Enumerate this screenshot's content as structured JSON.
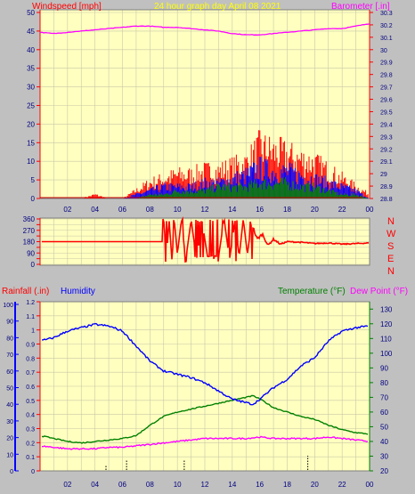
{
  "colors": {
    "background": "#c0c0c0",
    "plot_bg": "#ffffc0",
    "grid": "#c8c8a8",
    "red": "#ff0000",
    "magenta": "#ff00ff",
    "blue": "#0000ff",
    "green": "#008000",
    "yellow": "#ffff00",
    "axis": "#000000"
  },
  "top_panel": {
    "title": "24 hour graph day   April 08 2021",
    "left_label": "Windspeed [mph]",
    "right_label": "Barometer [.in]"
  },
  "direction_panel": {
    "compass": [
      "N",
      "W",
      "S",
      "E",
      "N"
    ]
  },
  "bottom_panel": {
    "rain_label": "Rainfall (.in)",
    "humidity_label": "Humidity",
    "temp_label": "Temperature (°F)",
    "dew_label": "Dew Point (°F)"
  },
  "x_ticks": [
    "02",
    "04",
    "06",
    "08",
    "10",
    "12",
    "14",
    "16",
    "18",
    "20",
    "22",
    "00"
  ],
  "chart_data": [
    {
      "type": "line",
      "panel": "wind-barometer",
      "title": "24 hour graph day   April 08 2021",
      "x_ticks": [
        "02",
        "04",
        "06",
        "08",
        "10",
        "12",
        "14",
        "16",
        "18",
        "20",
        "22",
        "00"
      ],
      "y_left": {
        "label": "Windspeed [mph]",
        "range": [
          0,
          50
        ],
        "ticks": [
          0,
          5,
          10,
          15,
          20,
          25,
          30,
          35,
          40,
          45,
          50
        ]
      },
      "y_right": {
        "label": "Barometer [.in]",
        "range": [
          28.8,
          30.3
        ],
        "ticks": [
          "28.8",
          "28.9",
          "29",
          "29.1",
          "29.2",
          "29.3",
          "29.4",
          "29.5",
          "29.6",
          "29.7",
          "29.8",
          "29.9",
          "30",
          "30.1",
          "30.2",
          "30.3"
        ]
      },
      "series": [
        {
          "name": "Barometer [.in]",
          "axis": "right",
          "color": "#ff00ff",
          "x": [
            0,
            1,
            2,
            3,
            4,
            5,
            6,
            7,
            8,
            9,
            10,
            11,
            12,
            13,
            14,
            15,
            16,
            17,
            18,
            19,
            20,
            21,
            22,
            23,
            24
          ],
          "values": [
            30.14,
            30.13,
            30.14,
            30.15,
            30.16,
            30.17,
            30.18,
            30.19,
            30.19,
            30.18,
            30.18,
            30.17,
            30.16,
            30.15,
            30.13,
            30.12,
            30.12,
            30.13,
            30.14,
            30.15,
            30.16,
            30.17,
            30.17,
            30.19,
            30.21
          ]
        },
        {
          "name": "Wind gust",
          "axis": "left",
          "color": "#ff0000",
          "x": [
            0,
            1,
            2,
            3,
            4,
            5,
            6,
            7,
            8,
            9,
            10,
            11,
            12,
            13,
            14,
            15,
            16,
            17,
            18,
            19,
            20,
            21,
            22,
            23,
            24
          ],
          "values": [
            0,
            0,
            0,
            0,
            1,
            0,
            0,
            2,
            4,
            5,
            6,
            6,
            7,
            7,
            8,
            9,
            13,
            12,
            11,
            10,
            9,
            7,
            5,
            3,
            1
          ]
        },
        {
          "name": "Wind average",
          "axis": "left",
          "color": "#0000ff",
          "x": [
            0,
            1,
            2,
            3,
            4,
            5,
            6,
            7,
            8,
            9,
            10,
            11,
            12,
            13,
            14,
            15,
            16,
            17,
            18,
            19,
            20,
            21,
            22,
            23,
            24
          ],
          "values": [
            0,
            0,
            0,
            0,
            0,
            0,
            0,
            1,
            2,
            3,
            3,
            3,
            4,
            4,
            5,
            6,
            8,
            7,
            7,
            6,
            5,
            4,
            3,
            2,
            0
          ]
        },
        {
          "name": "Wind lull",
          "axis": "left",
          "color": "#008000",
          "x": [
            0,
            1,
            2,
            3,
            4,
            5,
            6,
            7,
            8,
            9,
            10,
            11,
            12,
            13,
            14,
            15,
            16,
            17,
            18,
            19,
            20,
            21,
            22,
            23,
            24
          ],
          "values": [
            0,
            0,
            0,
            0,
            0,
            0,
            0,
            0,
            1,
            1,
            2,
            2,
            2,
            3,
            3,
            3,
            4,
            4,
            4,
            3,
            3,
            2,
            1,
            1,
            0
          ]
        }
      ]
    },
    {
      "type": "line",
      "panel": "wind-direction",
      "x_ticks": [
        "02",
        "04",
        "06",
        "08",
        "10",
        "12",
        "14",
        "16",
        "18",
        "20",
        "22",
        "00"
      ],
      "y_left": {
        "range": [
          0,
          360
        ],
        "ticks": [
          0,
          45,
          90,
          135,
          180,
          225,
          270,
          315,
          360
        ]
      },
      "y_right_labels": [
        "N",
        "W",
        "S",
        "E",
        "N"
      ],
      "series": [
        {
          "name": "Wind direction",
          "color": "#ff0000",
          "x": [
            0,
            6,
            8.9,
            9.0,
            9.2,
            9.4,
            9.6,
            9.8,
            10.0,
            10.3,
            10.6,
            11.0,
            11.4,
            11.8,
            12.2,
            12.6,
            13.0,
            13.4,
            13.8,
            14.2,
            14.5,
            14.8,
            15.1,
            15.4,
            15.8,
            16.2,
            16.6,
            17.0,
            17.5,
            18,
            19,
            20,
            21,
            22,
            23,
            24
          ],
          "values": [
            180,
            180,
            180,
            360,
            60,
            350,
            40,
            330,
            80,
            360,
            30,
            350,
            40,
            340,
            60,
            70,
            60,
            360,
            40,
            350,
            60,
            360,
            80,
            330,
            200,
            240,
            150,
            200,
            160,
            180,
            175,
            165,
            170,
            160,
            165,
            170
          ]
        }
      ]
    },
    {
      "type": "line",
      "panel": "temp-humidity-rain",
      "x_ticks": [
        "02",
        "04",
        "06",
        "08",
        "10",
        "12",
        "14",
        "16",
        "18",
        "20",
        "22",
        "00"
      ],
      "y_left_outer": {
        "label": "Rainfall (.in)",
        "range": [
          0,
          1.2
        ],
        "ticks": [
          "0",
          "0.1",
          "0.2",
          "0.3",
          "0.4",
          "0.5",
          "0.6",
          "0.7",
          "0.8",
          "0.9",
          "1",
          "1.1",
          "1.2"
        ]
      },
      "y_left_inner": {
        "label": "Humidity",
        "range": [
          0,
          100
        ],
        "ticks": [
          0,
          10,
          20,
          30,
          40,
          50,
          60,
          70,
          80,
          90,
          100
        ]
      },
      "y_right": {
        "label": "Temperature (°F)",
        "range": [
          20,
          135
        ],
        "ticks": [
          20,
          30,
          40,
          50,
          60,
          70,
          80,
          90,
          100,
          110,
          120,
          130
        ]
      },
      "series": [
        {
          "name": "Humidity",
          "axis": "humidity",
          "color": "#0000ff",
          "x": [
            0,
            1,
            2,
            3,
            4,
            5,
            6,
            7,
            8,
            9,
            10,
            11,
            12,
            13,
            14,
            15,
            15.5,
            16,
            17,
            18,
            19,
            20,
            21,
            22,
            23,
            24
          ],
          "values": [
            78,
            80,
            84,
            86,
            88,
            87,
            84,
            75,
            66,
            60,
            58,
            56,
            53,
            48,
            43,
            41,
            40,
            43,
            50,
            55,
            63,
            68,
            78,
            84,
            86,
            87
          ]
        },
        {
          "name": "Temperature (°F)",
          "axis": "temp",
          "color": "#008000",
          "x": [
            0,
            1,
            2,
            3,
            4,
            5,
            6,
            7,
            8,
            9,
            10,
            11,
            12,
            13,
            14,
            15,
            15.5,
            16,
            17,
            18,
            19,
            20,
            21,
            22,
            23,
            24
          ],
          "values": [
            44,
            42,
            40,
            39,
            40,
            41,
            42,
            44,
            51,
            57,
            60,
            62,
            64,
            66,
            68,
            70,
            71,
            69,
            63,
            60,
            57,
            55,
            51,
            48,
            46,
            45
          ]
        },
        {
          "name": "Dew Point (°F)",
          "axis": "temp",
          "color": "#ff00ff",
          "x": [
            0,
            1,
            2,
            3,
            4,
            5,
            6,
            7,
            8,
            9,
            10,
            11,
            12,
            13,
            14,
            15,
            16,
            17,
            18,
            19,
            20,
            21,
            22,
            23,
            24
          ],
          "values": [
            37,
            36,
            35,
            35,
            35,
            36,
            36,
            37,
            38,
            39,
            40,
            41,
            42,
            42,
            42,
            42,
            43,
            42,
            42,
            42,
            42,
            43,
            42,
            41,
            40
          ]
        }
      ]
    }
  ]
}
